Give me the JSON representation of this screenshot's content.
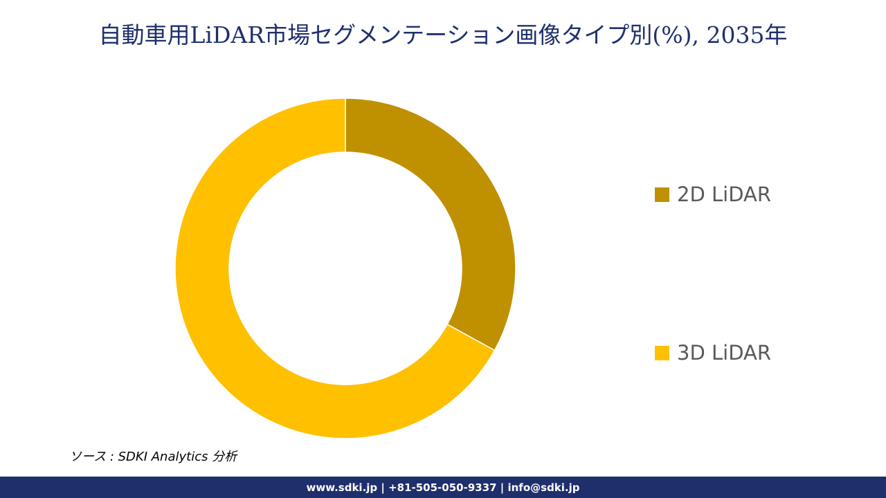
{
  "title": "自動車用LiDAR市場セグメンテーション画像タイプ別(%), 2035年",
  "chart_data": {
    "type": "pie",
    "donut": true,
    "title": "自動車用LiDAR市場セグメンテーション画像タイプ別(%), 2035年",
    "categories": [
      "2D LiDAR",
      "3D LiDAR"
    ],
    "values": [
      33,
      67
    ],
    "colors": [
      "#bf9000",
      "#ffc000"
    ],
    "start_angle": "12 o'clock, clockwise",
    "legend_position": "right"
  },
  "legend": {
    "items": [
      {
        "label": "2D LiDAR",
        "color": "#bf9000"
      },
      {
        "label": "3D LiDAR",
        "color": "#ffc000"
      }
    ]
  },
  "source": "ソース : SDKI Analytics  分析",
  "footer": "www.sdki.jp | +81-505-050-9337 | info@sdki.jp",
  "colors": {
    "title": "#1f2f6b",
    "footer_bg": "#1f2f6b"
  }
}
